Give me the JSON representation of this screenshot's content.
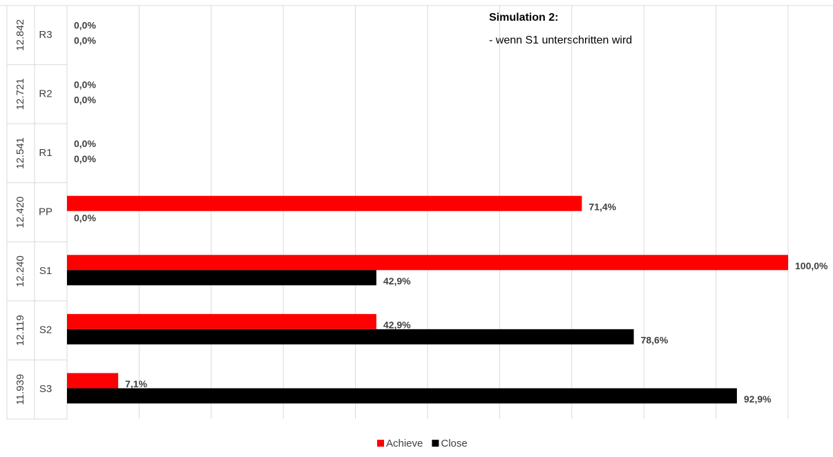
{
  "chart_data": {
    "type": "bar",
    "orientation": "horizontal",
    "annotations": [
      "Simulation 2:",
      "- wenn S1 unterschritten wird"
    ],
    "category_groups": [
      "12.842",
      "12.721",
      "12.541",
      "12.420",
      "12.240",
      "12.119",
      "11.939"
    ],
    "categories": [
      "R3",
      "R2",
      "R1",
      "PP",
      "S1",
      "S2",
      "S3"
    ],
    "series": [
      {
        "name": "Achieve",
        "color": "#ff0000",
        "values": [
          0,
          0,
          0,
          71.4,
          100,
          42.9,
          7.1
        ],
        "value_labels": [
          "0,0%",
          "0,0%",
          "0,0%",
          "71,4%",
          "100,0%",
          "42,9%",
          "7,1%"
        ]
      },
      {
        "name": "Close",
        "color": "#000000",
        "values": [
          0,
          0,
          0,
          0,
          42.9,
          78.6,
          92.9
        ],
        "value_labels": [
          "0,0%",
          "0,0%",
          "0,0%",
          "0,0%",
          "42,9%",
          "78,6%",
          "92,9%"
        ]
      }
    ],
    "xlim": [
      0,
      100
    ],
    "xticks": [
      0,
      10,
      20,
      30,
      40,
      50,
      60,
      70,
      80,
      90,
      100
    ],
    "grid": true,
    "legend": "bottom"
  }
}
